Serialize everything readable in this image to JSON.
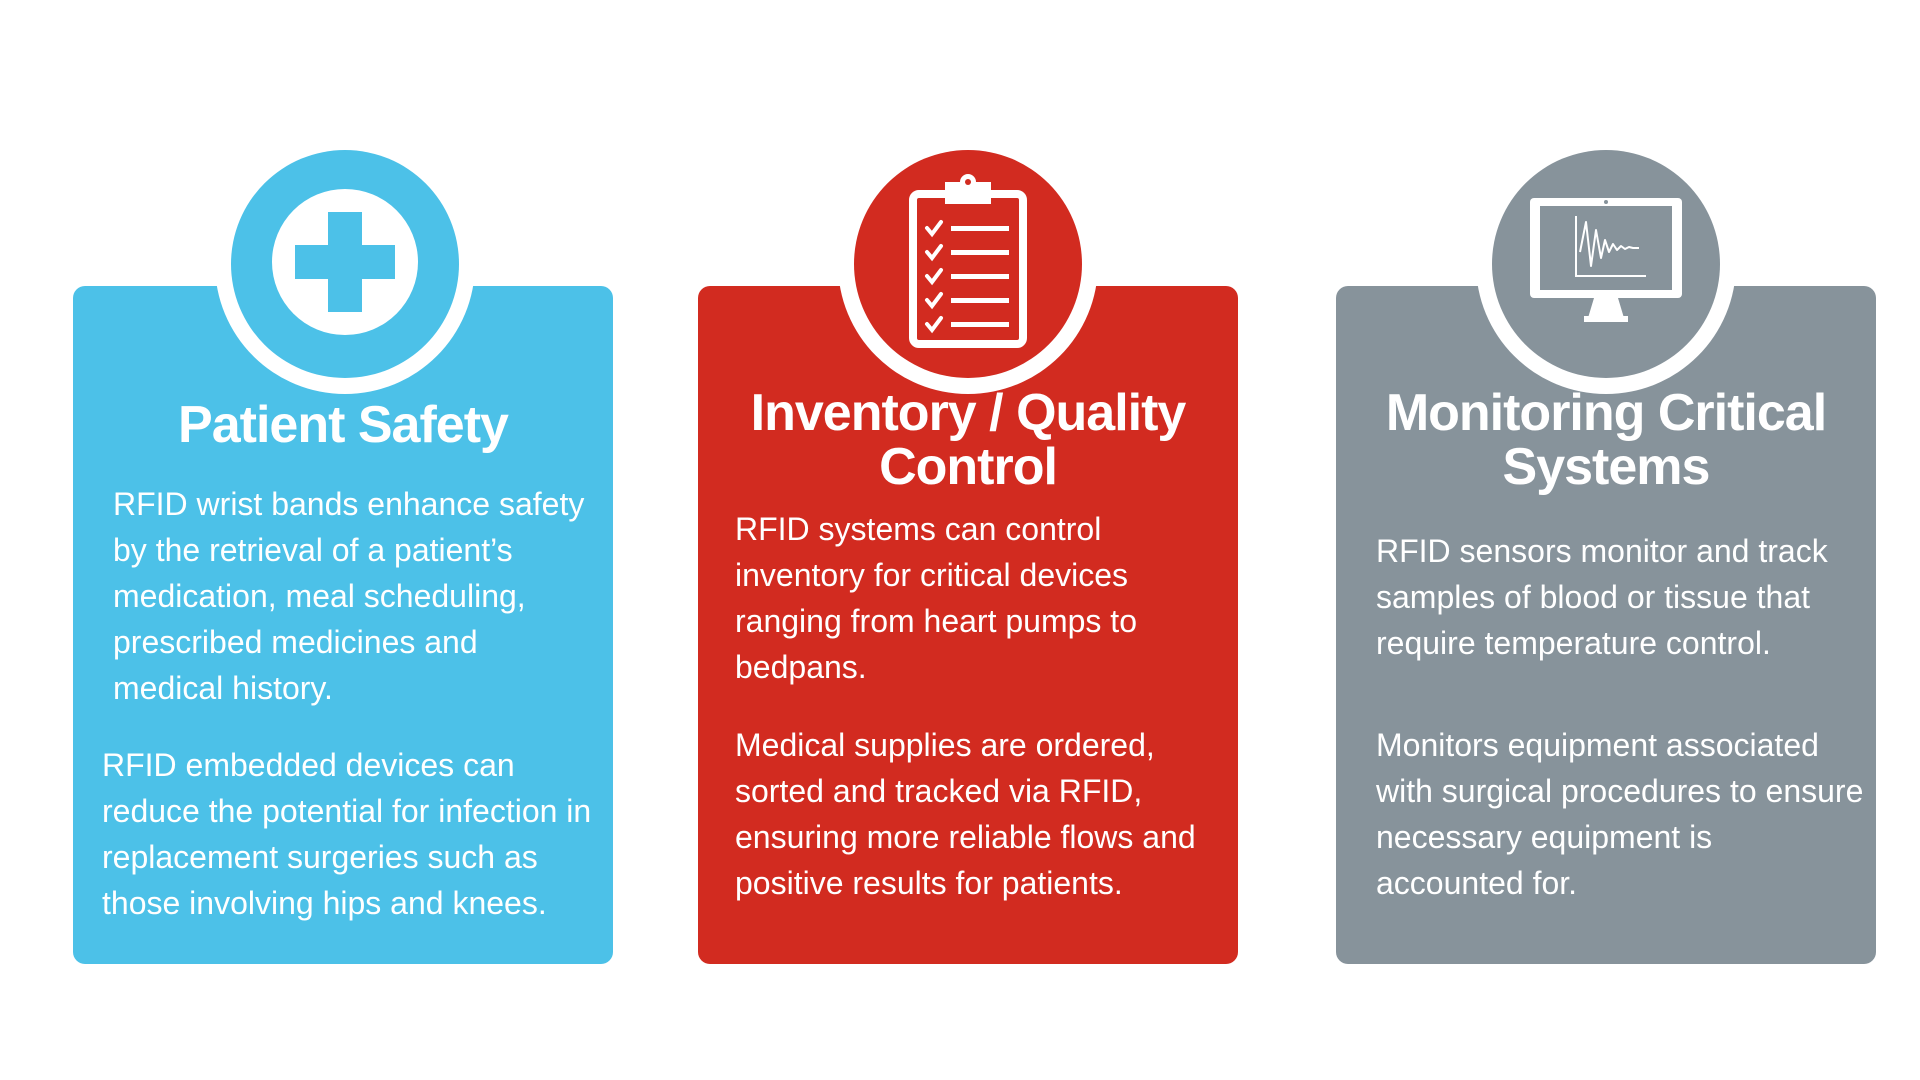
{
  "colors": {
    "patient_safety": "#4cc1e8",
    "inventory": "#d22b20",
    "monitoring": "#87939b",
    "text": "#ffffff"
  },
  "cards": [
    {
      "icon": "medical-cross-icon",
      "title": "Patient Safety",
      "paragraphs": [
        "RFID wrist bands enhance safety by the retrieval of a patient’s medication, meal scheduling, prescribed medicines and medical history.",
        "RFID embedded devices can reduce the potential for infection in replacement surgeries such as those involving hips and knees."
      ]
    },
    {
      "icon": "clipboard-checklist-icon",
      "title": "Inventory / Quality Control",
      "paragraphs": [
        "RFID systems can control inventory for critical devices ranging from heart pumps to bedpans.",
        "Medical supplies are ordered, sorted and tracked via RFID, ensuring more reliable flows and positive results for patients."
      ]
    },
    {
      "icon": "monitor-waveform-icon",
      "title": "Monitoring Critical Systems",
      "paragraphs": [
        "RFID sensors monitor and track samples of blood or tissue that require temperature control.",
        "Monitors equipment associated with surgical procedures to ensure necessary equipment is accounted for."
      ]
    }
  ]
}
